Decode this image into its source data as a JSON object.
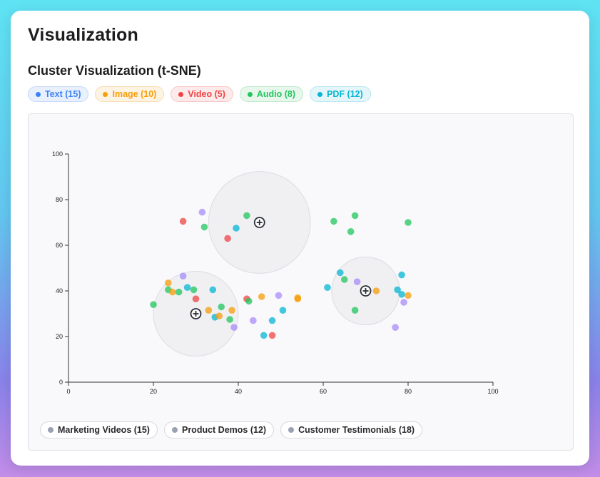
{
  "page": {
    "title": "Visualization"
  },
  "section": {
    "title": "Cluster Visualization (t-SNE)"
  },
  "type_filters": [
    {
      "label": "Text (15)",
      "color": "#3b82f6",
      "bg": "#e8f0fe",
      "border": "#c7d8fb"
    },
    {
      "label": "Image (10)",
      "color": "#f59e0b",
      "bg": "#fdf3e3",
      "border": "#f6dcb0"
    },
    {
      "label": "Video (5)",
      "color": "#ef4444",
      "bg": "#fdeaea",
      "border": "#f6c6c6"
    },
    {
      "label": "Audio (8)",
      "color": "#22c55e",
      "bg": "#e7f7ec",
      "border": "#bfe8cc"
    },
    {
      "label": "PDF (12)",
      "color": "#06b6d4",
      "bg": "#e4f6fa",
      "border": "#b8e6ef"
    }
  ],
  "clusters": [
    {
      "label": "Marketing Videos (15)",
      "center": [
        45,
        70
      ],
      "radius": 12,
      "icon": "plus-circle-icon"
    },
    {
      "label": "Product Demos (12)",
      "center": [
        70,
        40
      ],
      "radius": 8,
      "icon": "plus-circle-icon"
    },
    {
      "label": "Customer Testimonials (18)",
      "center": [
        30,
        30
      ],
      "radius": 10,
      "icon": "plus-circle-icon"
    }
  ],
  "chart_data": {
    "type": "scatter",
    "xlim": [
      0,
      100
    ],
    "ylim": [
      0,
      100
    ],
    "xticks": [
      0,
      20,
      40,
      60,
      80,
      100
    ],
    "yticks": [
      0,
      20,
      40,
      60,
      80,
      100
    ],
    "grid": false,
    "colors": {
      "Text": "#3b82f6",
      "Image": "#f59e0b",
      "Video": "#ef4444",
      "Audio": "#22c55e",
      "PDF": "#06b6d4",
      "Other": "#a78bfa"
    },
    "points": [
      {
        "x": 27,
        "y": 70.5,
        "cat": "Video"
      },
      {
        "x": 31.5,
        "y": 74.5,
        "cat": "Other"
      },
      {
        "x": 32,
        "y": 68,
        "cat": "Audio"
      },
      {
        "x": 37.5,
        "y": 63,
        "cat": "Video"
      },
      {
        "x": 39.5,
        "y": 67.5,
        "cat": "PDF"
      },
      {
        "x": 42,
        "y": 73,
        "cat": "Audio"
      },
      {
        "x": 62.5,
        "y": 70.5,
        "cat": "Audio"
      },
      {
        "x": 66.5,
        "y": 66,
        "cat": "Audio"
      },
      {
        "x": 67.5,
        "y": 73,
        "cat": "Audio"
      },
      {
        "x": 80,
        "y": 70,
        "cat": "Audio"
      },
      {
        "x": 20,
        "y": 34,
        "cat": "Audio"
      },
      {
        "x": 23.5,
        "y": 43.5,
        "cat": "Image"
      },
      {
        "x": 23.5,
        "y": 40.5,
        "cat": "Audio"
      },
      {
        "x": 24.5,
        "y": 39.5,
        "cat": "Image"
      },
      {
        "x": 26,
        "y": 39.5,
        "cat": "Audio"
      },
      {
        "x": 27,
        "y": 46.5,
        "cat": "Other"
      },
      {
        "x": 28,
        "y": 41.5,
        "cat": "PDF"
      },
      {
        "x": 29.5,
        "y": 40.5,
        "cat": "Audio"
      },
      {
        "x": 30,
        "y": 36.5,
        "cat": "Video"
      },
      {
        "x": 33,
        "y": 31.5,
        "cat": "Image"
      },
      {
        "x": 34,
        "y": 40.5,
        "cat": "PDF"
      },
      {
        "x": 34.5,
        "y": 28.5,
        "cat": "PDF"
      },
      {
        "x": 35.5,
        "y": 29,
        "cat": "Image"
      },
      {
        "x": 36,
        "y": 33,
        "cat": "Audio"
      },
      {
        "x": 38,
        "y": 27.5,
        "cat": "Audio"
      },
      {
        "x": 38.5,
        "y": 31.5,
        "cat": "Image"
      },
      {
        "x": 39,
        "y": 24,
        "cat": "Other"
      },
      {
        "x": 42,
        "y": 36.5,
        "cat": "Video"
      },
      {
        "x": 42.5,
        "y": 35.5,
        "cat": "Audio"
      },
      {
        "x": 43.5,
        "y": 27,
        "cat": "Other"
      },
      {
        "x": 45.5,
        "y": 37.5,
        "cat": "Image"
      },
      {
        "x": 46,
        "y": 20.5,
        "cat": "PDF"
      },
      {
        "x": 48,
        "y": 20.5,
        "cat": "Video"
      },
      {
        "x": 48,
        "y": 27,
        "cat": "PDF"
      },
      {
        "x": 49.5,
        "y": 38,
        "cat": "Other"
      },
      {
        "x": 50.5,
        "y": 31.5,
        "cat": "PDF"
      },
      {
        "x": 54,
        "y": 36.5,
        "cat": "Image"
      },
      {
        "x": 54,
        "y": 37,
        "cat": "Image"
      },
      {
        "x": 61,
        "y": 41.5,
        "cat": "PDF"
      },
      {
        "x": 64,
        "y": 48,
        "cat": "PDF"
      },
      {
        "x": 65,
        "y": 45,
        "cat": "Audio"
      },
      {
        "x": 67.5,
        "y": 31.5,
        "cat": "Audio"
      },
      {
        "x": 68,
        "y": 44,
        "cat": "Other"
      },
      {
        "x": 72.5,
        "y": 40,
        "cat": "Image"
      },
      {
        "x": 77,
        "y": 24,
        "cat": "Other"
      },
      {
        "x": 77.5,
        "y": 40.5,
        "cat": "PDF"
      },
      {
        "x": 78.5,
        "y": 47,
        "cat": "PDF"
      },
      {
        "x": 78.5,
        "y": 38.5,
        "cat": "PDF"
      },
      {
        "x": 79,
        "y": 35,
        "cat": "Other"
      },
      {
        "x": 80,
        "y": 38,
        "cat": "Image"
      }
    ]
  }
}
